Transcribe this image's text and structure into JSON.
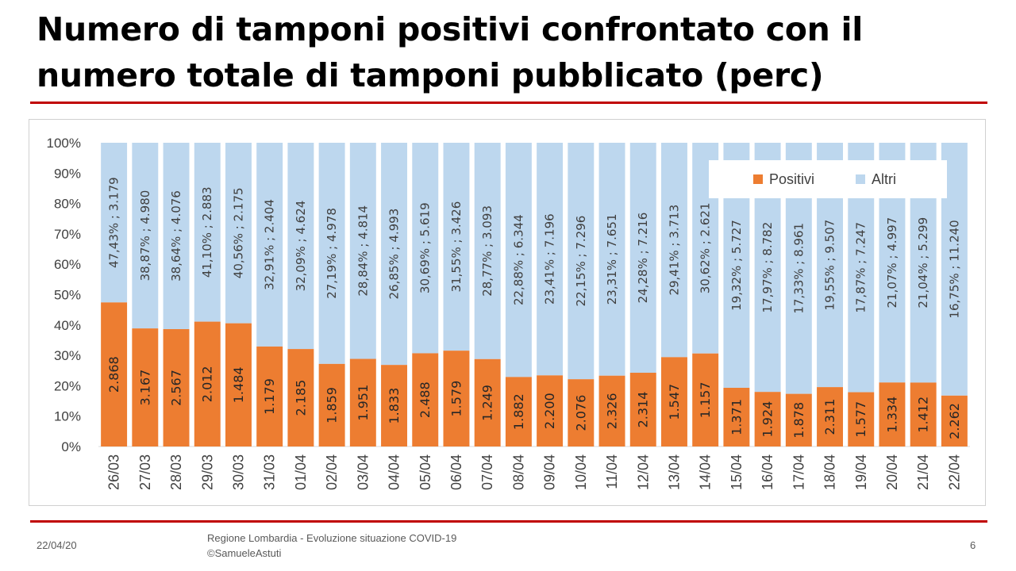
{
  "slide": {
    "title": "Numero di tamponi positivi confrontato con il numero totale di tamponi pubblicato (perc)",
    "footer_date": "22/04/20",
    "footer_source_line1": "Regione Lombardia - Evoluzione situazione COVID-19",
    "footer_source_line2": "©SamueleAstuti",
    "page_number": "6"
  },
  "colors": {
    "positivi": "#ed7d31",
    "altri": "#bdd7ee",
    "rule": "#c00000",
    "axis_text": "#404040"
  },
  "chart_data": {
    "type": "bar",
    "stacked": "percent",
    "title": "",
    "xlabel": "",
    "ylabel": "",
    "ylim": [
      0,
      100
    ],
    "yticks": [
      "0%",
      "10%",
      "20%",
      "30%",
      "40%",
      "50%",
      "60%",
      "70%",
      "80%",
      "90%",
      "100%"
    ],
    "legend_position": "top-right",
    "categories": [
      "26/03",
      "27/03",
      "28/03",
      "29/03",
      "30/03",
      "31/03",
      "01/04",
      "02/04",
      "03/04",
      "04/04",
      "05/04",
      "06/04",
      "07/04",
      "08/04",
      "09/04",
      "10/04",
      "11/04",
      "12/04",
      "13/04",
      "14/04",
      "15/04",
      "16/04",
      "17/04",
      "18/04",
      "19/04",
      "20/04",
      "21/04",
      "22/04"
    ],
    "series": [
      {
        "name": "Positivi",
        "values": [
          2868,
          3167,
          2567,
          2012,
          1484,
          1179,
          2185,
          1859,
          1951,
          1833,
          2488,
          1579,
          1249,
          1882,
          2200,
          2076,
          2326,
          2314,
          1547,
          1157,
          1371,
          1924,
          1878,
          2311,
          1577,
          1334,
          1412,
          2262
        ],
        "percent": [
          47.43,
          38.87,
          38.64,
          41.1,
          40.56,
          32.91,
          32.09,
          27.19,
          28.84,
          26.85,
          30.69,
          31.55,
          28.77,
          22.88,
          23.41,
          22.15,
          23.31,
          24.28,
          29.41,
          30.62,
          19.32,
          17.97,
          17.33,
          19.55,
          17.87,
          21.07,
          21.04,
          16.75
        ],
        "labels": [
          "2.868",
          "3.167",
          "2.567",
          "2.012",
          "1.484",
          "1.179",
          "2.185",
          "1.859",
          "1.951",
          "1.833",
          "2.488",
          "1.579",
          "1.249",
          "1.882",
          "2.200",
          "2.076",
          "2.326",
          "2.314",
          "1.547",
          "1.157",
          "1.371",
          "1.924",
          "1.878",
          "2.311",
          "1.577",
          "1.334",
          "1.412",
          "2.262"
        ]
      },
      {
        "name": "Altri",
        "values": [
          3179,
          4980,
          4076,
          2883,
          2175,
          2404,
          4624,
          4978,
          4814,
          4993,
          5619,
          3426,
          3093,
          6344,
          7196,
          7296,
          7651,
          7216,
          3713,
          2621,
          5727,
          8782,
          8961,
          9507,
          7247,
          4997,
          5299,
          11240
        ],
        "labels": [
          "47,43% ; 3.179",
          "38,87% ; 4.980",
          "38,64% ; 4.076",
          "41,10% ; 2.883",
          "40,56% ; 2.175",
          "32,91% ; 2.404",
          "32,09% ; 4.624",
          "27,19% ; 4.978",
          "28,84% ; 4.814",
          "26,85% ; 4.993",
          "30,69% ; 5.619",
          "31,55% ; 3.426",
          "28,77% ; 3.093",
          "22,88% ; 6.344",
          "23,41% ; 7.196",
          "22,15% ; 7.296",
          "23,31% ; 7.651",
          "24,28% ; 7.216",
          "29,41% ; 3.713",
          "30,62% ; 2.621",
          "19,32% ; 5.727",
          "17,97% ; 8.782",
          "17,33% ; 8.961",
          "19,55% ; 9.507",
          "17,87% ; 7.247",
          "21,07% ; 4.997",
          "21,04% ; 5.299",
          "16,75% ; 11.240"
        ]
      }
    ]
  }
}
